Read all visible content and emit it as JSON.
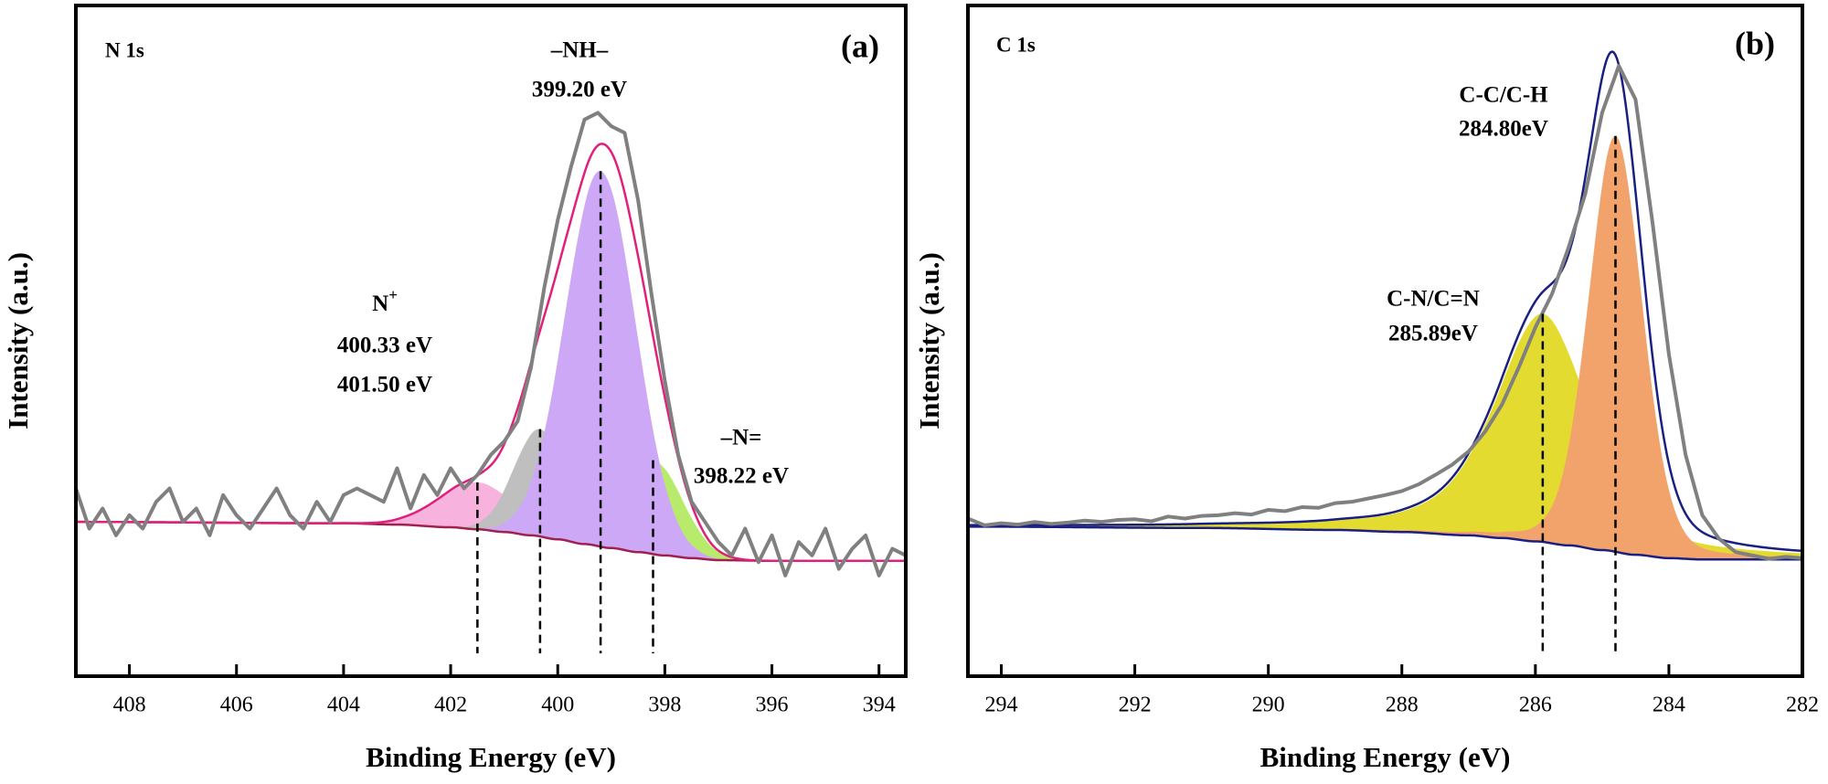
{
  "chart_data": [
    {
      "type": "spectrum",
      "panel_label": "(a)",
      "region": "N 1s",
      "x_label": "Binding Energy (eV)",
      "y_label": "Intensity (a.u.)",
      "xlim": [
        409,
        393.5
      ],
      "xticks": [
        408,
        406,
        404,
        402,
        400,
        398,
        396,
        394
      ],
      "ylim": [
        0,
        100
      ],
      "spectrum": {
        "color": "#808080",
        "x": [
          409,
          408.75,
          408.5,
          408.25,
          408,
          407.75,
          407.5,
          407.25,
          407,
          406.75,
          406.5,
          406.25,
          406,
          405.75,
          405.5,
          405.25,
          405,
          404.75,
          404.5,
          404.25,
          404,
          403.75,
          403.5,
          403.25,
          403,
          402.75,
          402.5,
          402.25,
          402,
          401.75,
          401.5,
          401.25,
          401,
          400.75,
          400.5,
          400.25,
          400,
          399.75,
          399.5,
          399.25,
          399,
          398.75,
          398.5,
          398.25,
          398,
          397.75,
          397.5,
          397.25,
          397,
          396.75,
          396.5,
          396.25,
          396,
          395.75,
          395.5,
          395.25,
          395,
          394.75,
          394.5,
          394.25,
          394,
          393.75,
          393.5
        ],
        "values": [
          28,
          22,
          25,
          21,
          24,
          22,
          26,
          28,
          23,
          25,
          21,
          27,
          24,
          22,
          25,
          28,
          24,
          22,
          26,
          23,
          27,
          28,
          27,
          26,
          31,
          25,
          30,
          27,
          31,
          28,
          30,
          33,
          35,
          38,
          46,
          58,
          68,
          76,
          83,
          84,
          82,
          81,
          71,
          57,
          44,
          33,
          26,
          23,
          20,
          18,
          22,
          17,
          21,
          15,
          20,
          18,
          22,
          16,
          19,
          21,
          15,
          19,
          18
        ]
      },
      "background": {
        "color": "#a0204e",
        "x": [
          409,
          404,
          403,
          402,
          401.5,
          401,
          400.5,
          400,
          399.5,
          399,
          398.5,
          398,
          397.5,
          397,
          396,
          393.5
        ],
        "values": [
          23,
          22.8,
          22.6,
          22.2,
          21.9,
          21.5,
          21,
          20.4,
          19.7,
          19.1,
          18.5,
          18,
          17.6,
          17.3,
          17.2,
          17.2
        ]
      },
      "envelope_color": "#e0207a",
      "components": [
        {
          "center": 401.5,
          "height": 7,
          "fwhm": 1.7,
          "shape_mix": 0,
          "color": "#f8b2de"
        },
        {
          "center": 400.33,
          "height": 16,
          "fwhm": 1.15,
          "shape_mix": 0,
          "color": "#bfbfbf"
        },
        {
          "center": 398.22,
          "height": 14,
          "fwhm": 1.3,
          "shape_mix": 0,
          "color": "#b8eb6c"
        },
        {
          "center": 399.2,
          "height": 56,
          "fwhm": 1.55,
          "shape_mix": 0,
          "color": "#cda8f6"
        }
      ],
      "annotations": [
        "–NH–",
        "399.20 eV",
        {
          "text": "N",
          "sup": "+"
        },
        "400.33 eV",
        "401.50 eV",
        "–N=",
        "398.22 eV"
      ]
    },
    {
      "type": "spectrum",
      "panel_label": "(b)",
      "region": "C 1s",
      "x_label": "Binding Energy (eV)",
      "y_label": "Intensity (a.u.)",
      "xlim": [
        294.5,
        282
      ],
      "xticks": [
        294,
        292,
        290,
        288,
        286,
        284,
        282
      ],
      "ylim": [
        0,
        100
      ],
      "spectrum": {
        "color": "#808080",
        "x": [
          294.5,
          294.25,
          294,
          293.75,
          293.5,
          293.25,
          293,
          292.75,
          292.5,
          292.25,
          292,
          291.75,
          291.5,
          291.25,
          291,
          290.75,
          290.5,
          290.25,
          290,
          289.75,
          289.5,
          289.25,
          289,
          288.75,
          288.5,
          288.25,
          288,
          287.75,
          287.5,
          287.25,
          287,
          286.75,
          286.5,
          286.25,
          286,
          285.75,
          285.5,
          285.25,
          285,
          284.75,
          284.5,
          284.25,
          284,
          283.75,
          283.5,
          283.25,
          283,
          282.75,
          282.5,
          282.25,
          282
        ],
        "values": [
          23.5,
          22.5,
          22.8,
          22.6,
          23,
          22.7,
          22.9,
          23.2,
          23,
          23.3,
          23.4,
          23.1,
          23.8,
          23.5,
          23.9,
          24,
          24.3,
          24.1,
          24.8,
          24.6,
          25.2,
          25.1,
          25.8,
          26,
          26.5,
          27,
          27.6,
          28.6,
          30,
          31.5,
          33.5,
          36.5,
          40.5,
          46,
          52,
          57,
          64,
          72,
          84,
          91,
          86,
          68,
          48,
          33,
          24,
          20.5,
          18.5,
          18,
          17.5,
          17.8,
          17.6
        ]
      },
      "background": {
        "color": "#1a2080",
        "x": [
          294.5,
          291,
          289,
          288,
          287,
          286.5,
          286,
          285.5,
          285,
          284.5,
          284,
          283.5,
          283,
          282
        ],
        "values": [
          22.3,
          22.1,
          21.8,
          21.5,
          21,
          20.6,
          20.1,
          19.5,
          18.8,
          18.1,
          17.6,
          17.4,
          17.4,
          17.4
        ]
      },
      "envelope_color": "#1a2080",
      "components": [
        {
          "center": 285.89,
          "height": 34,
          "fwhm": 1.7,
          "shape_mix": 0.6,
          "color": "#e3db30"
        },
        {
          "center": 284.8,
          "height": 62,
          "fwhm": 0.95,
          "shape_mix": 0.2,
          "color": "#f2a36c"
        }
      ],
      "annotations": [
        "C-C/C-H",
        "284.80eV",
        "C-N/C=N",
        "285.89eV"
      ]
    }
  ]
}
